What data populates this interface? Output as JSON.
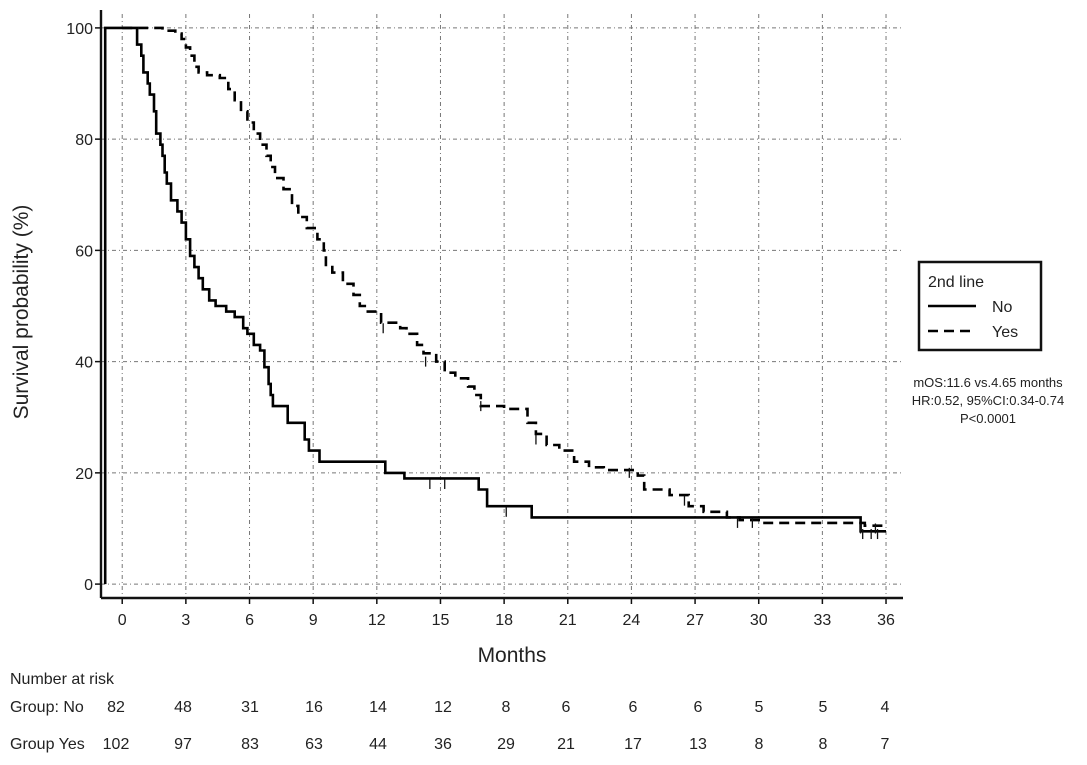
{
  "chart_data": {
    "type": "line",
    "subtype": "kaplan-meier",
    "title": "",
    "xlabel": "Months",
    "ylabel": "Survival probability (%)",
    "xlim": [
      -1,
      36.8
    ],
    "ylim": [
      -2.5,
      102.5
    ],
    "x_ticks": [
      0,
      3,
      6,
      9,
      12,
      15,
      18,
      21,
      24,
      27,
      30,
      33,
      36
    ],
    "y_ticks": [
      0,
      20,
      40,
      60,
      80,
      100
    ],
    "grid": true,
    "legend": {
      "title": "2nd line",
      "placement": "right",
      "entries": [
        {
          "label": "No",
          "style": "solid"
        },
        {
          "label": "Yes",
          "style": "dashed"
        }
      ]
    },
    "annotation_lines": [
      "mOS:11.6 vs.4.65 months",
      "HR:0.52, 95%CI:0.34-0.74",
      "P<0.0001"
    ],
    "series": [
      {
        "name": "No",
        "style": "solid",
        "color": "#000000",
        "points": [
          [
            -0.8,
            100
          ],
          [
            -0.8,
            0
          ],
          [
            -0.8,
            100
          ],
          [
            0.6,
            100
          ],
          [
            0.7,
            97
          ],
          [
            0.9,
            95
          ],
          [
            1.0,
            92
          ],
          [
            1.2,
            90
          ],
          [
            1.3,
            88
          ],
          [
            1.5,
            85
          ],
          [
            1.6,
            81
          ],
          [
            1.8,
            79
          ],
          [
            1.9,
            77
          ],
          [
            2.0,
            74
          ],
          [
            2.1,
            72
          ],
          [
            2.3,
            69
          ],
          [
            2.6,
            67
          ],
          [
            2.8,
            65
          ],
          [
            3.0,
            62
          ],
          [
            3.2,
            59
          ],
          [
            3.4,
            57
          ],
          [
            3.6,
            55
          ],
          [
            3.8,
            53
          ],
          [
            4.1,
            51
          ],
          [
            4.4,
            50
          ],
          [
            4.9,
            49
          ],
          [
            5.3,
            48
          ],
          [
            5.7,
            46
          ],
          [
            5.9,
            45
          ],
          [
            6.2,
            43
          ],
          [
            6.5,
            42
          ],
          [
            6.7,
            39
          ],
          [
            6.9,
            36
          ],
          [
            7.0,
            34
          ],
          [
            7.1,
            32
          ],
          [
            7.8,
            29
          ],
          [
            8.6,
            26
          ],
          [
            8.8,
            24
          ],
          [
            9.3,
            22
          ],
          [
            12.4,
            20
          ],
          [
            13.3,
            19
          ],
          [
            16.8,
            17
          ],
          [
            17.2,
            14
          ],
          [
            19.3,
            12
          ],
          [
            34.8,
            9.5
          ],
          [
            36,
            9.5
          ]
        ]
      },
      {
        "name": "Yes",
        "style": "dashed",
        "color": "#000000",
        "points": [
          [
            0,
            100
          ],
          [
            1.5,
            100
          ],
          [
            1.9,
            99.5
          ],
          [
            2.5,
            99
          ],
          [
            2.8,
            98
          ],
          [
            3.0,
            96.5
          ],
          [
            3.2,
            95
          ],
          [
            3.4,
            93
          ],
          [
            3.6,
            92
          ],
          [
            4.0,
            91.5
          ],
          [
            4.6,
            91
          ],
          [
            5.0,
            89
          ],
          [
            5.3,
            87
          ],
          [
            5.6,
            85
          ],
          [
            5.9,
            83
          ],
          [
            6.2,
            81
          ],
          [
            6.5,
            79
          ],
          [
            6.8,
            77
          ],
          [
            7.0,
            75
          ],
          [
            7.2,
            73
          ],
          [
            7.6,
            71
          ],
          [
            8.0,
            68
          ],
          [
            8.3,
            66
          ],
          [
            8.7,
            64
          ],
          [
            9.2,
            62
          ],
          [
            9.5,
            60
          ],
          [
            9.6,
            57
          ],
          [
            9.9,
            56
          ],
          [
            10.4,
            54
          ],
          [
            10.9,
            52
          ],
          [
            11.2,
            50
          ],
          [
            11.5,
            49
          ],
          [
            12.2,
            47
          ],
          [
            13.1,
            46
          ],
          [
            13.4,
            45
          ],
          [
            13.9,
            43
          ],
          [
            14.2,
            41.5
          ],
          [
            14.8,
            40
          ],
          [
            15.2,
            38
          ],
          [
            15.7,
            37
          ],
          [
            16.3,
            35.5
          ],
          [
            16.6,
            34
          ],
          [
            16.9,
            32
          ],
          [
            18.0,
            31.5
          ],
          [
            19.1,
            29
          ],
          [
            19.5,
            27
          ],
          [
            20.0,
            25
          ],
          [
            20.6,
            24
          ],
          [
            21.3,
            22
          ],
          [
            22.0,
            21
          ],
          [
            22.7,
            20.5
          ],
          [
            24.3,
            19.5
          ],
          [
            24.6,
            17
          ],
          [
            25.8,
            16
          ],
          [
            26.7,
            14
          ],
          [
            27.4,
            13
          ],
          [
            28.5,
            12
          ],
          [
            29.1,
            11.5
          ],
          [
            30.0,
            11
          ],
          [
            35.0,
            10.5
          ],
          [
            36,
            10.5
          ]
        ]
      }
    ],
    "censor_marks": {
      "No": [
        [
          14.5,
          18
        ],
        [
          15.2,
          18
        ],
        [
          18.1,
          13
        ],
        [
          34.9,
          9
        ],
        [
          35.3,
          9
        ],
        [
          35.6,
          9
        ]
      ],
      "Yes": [
        [
          12.3,
          46
        ],
        [
          14.3,
          40
        ],
        [
          16.9,
          32
        ],
        [
          19.5,
          26
        ],
        [
          23.9,
          20
        ],
        [
          26.5,
          15
        ],
        [
          29.0,
          11
        ],
        [
          29.7,
          11
        ],
        [
          34.8,
          10
        ],
        [
          35.5,
          10
        ]
      ]
    },
    "risk_table": {
      "heading": "Number at risk",
      "times": [
        0,
        3,
        6,
        9,
        12,
        15,
        18,
        21,
        24,
        27,
        30,
        33,
        36
      ],
      "rows": [
        {
          "label": "Group: No",
          "values": [
            82,
            48,
            31,
            16,
            14,
            12,
            8,
            6,
            6,
            6,
            5,
            5,
            4
          ]
        },
        {
          "label": "Group Yes",
          "values": [
            102,
            97,
            83,
            63,
            44,
            36,
            29,
            21,
            17,
            13,
            8,
            8,
            7
          ]
        }
      ]
    }
  }
}
